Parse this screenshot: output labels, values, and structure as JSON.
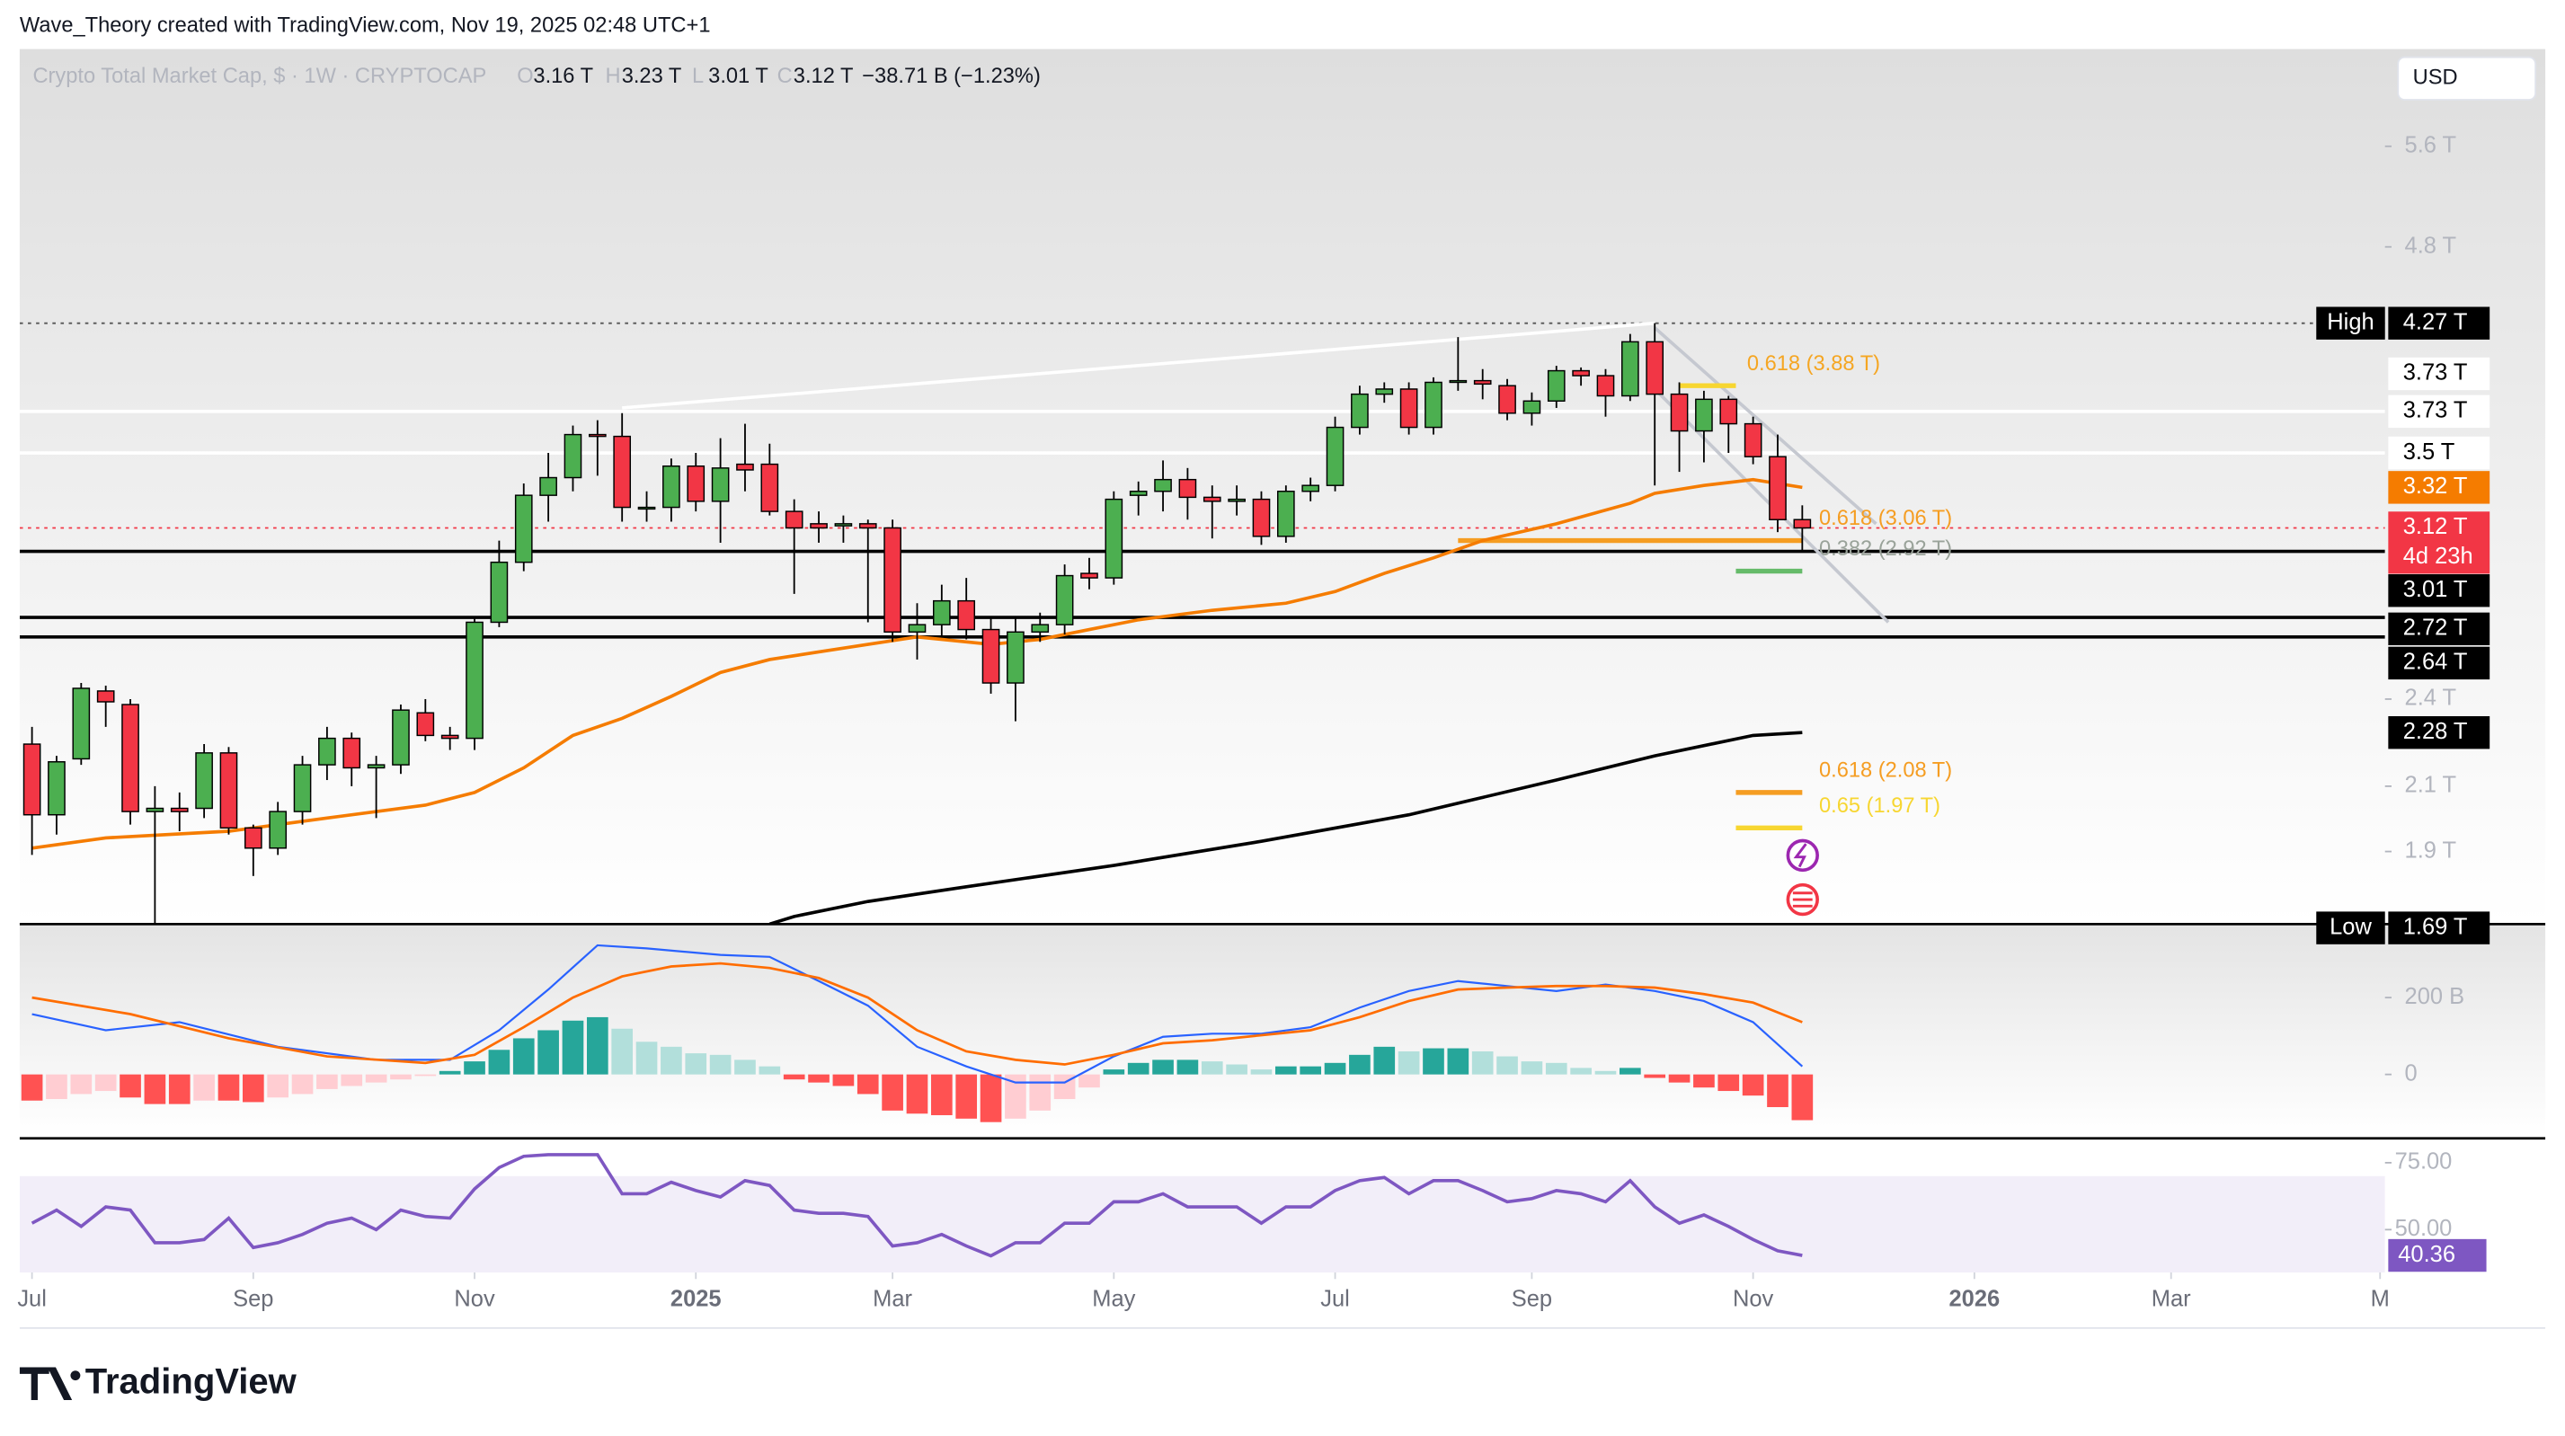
{
  "header": "Wave_Theory created with TradingView.com, Nov 19, 2025 02:48 UTC+1",
  "currency": "USD",
  "brand": "TradingView",
  "chart_data": {
    "type": "candlestick",
    "title": "Crypto Total Market Cap, $ · 1W · CRYPTOCAP",
    "legend_ohlc": [
      {
        "key": "O",
        "label": "3.16 T"
      },
      {
        "key": "H",
        "label": "3.23 T"
      },
      {
        "key": "L",
        "label": "3.01 T"
      },
      {
        "key": "C",
        "label": "3.12 T"
      }
    ],
    "change": "−38.71 B (−1.23%)",
    "xlim": [
      -0.5,
      95.7
    ],
    "xticks": [
      {
        "value": 0,
        "label": "Jul"
      },
      {
        "value": 9,
        "label": "Sep"
      },
      {
        "value": 18,
        "label": "Nov"
      },
      {
        "value": 27,
        "label": "2025"
      },
      {
        "value": 35,
        "label": "Mar"
      },
      {
        "value": 44,
        "label": "May"
      },
      {
        "value": 53,
        "label": "Jul"
      },
      {
        "value": 61,
        "label": "Sep"
      },
      {
        "value": 70,
        "label": "Nov"
      },
      {
        "value": 79,
        "label": "2026"
      },
      {
        "value": 87,
        "label": "Mar"
      },
      {
        "value": 95.5,
        "label": "M"
      }
    ],
    "ylim": [
      1.7,
      6.5
    ],
    "log_scale": true,
    "yticks": [
      {
        "value": 5.6,
        "label": "5.6 T"
      },
      {
        "value": 4.8,
        "label": "4.8 T"
      },
      {
        "value": 2.4,
        "label": "2.4 T"
      },
      {
        "value": 2.1,
        "label": "2.1 T"
      },
      {
        "value": 1.9,
        "label": "1.9 T"
      }
    ],
    "open": [
      2.24,
      2.01,
      2.19,
      2.43,
      2.38,
      2.02,
      2.03,
      2.03,
      2.21,
      1.97,
      1.91,
      2.02,
      2.17,
      2.26,
      2.16,
      2.17,
      2.35,
      2.27,
      2.26,
      2.7,
      2.96,
      3.28,
      3.37,
      3.6,
      3.59,
      3.22,
      3.22,
      3.43,
      3.25,
      3.44,
      3.44,
      3.2,
      3.14,
      3.13,
      3.14,
      3.12,
      2.66,
      2.69,
      2.79,
      2.67,
      2.46,
      2.66,
      2.69,
      2.91,
      2.89,
      3.28,
      3.3,
      3.36,
      3.27,
      3.25,
      3.26,
      3.08,
      3.3,
      3.33,
      3.64,
      3.83,
      3.86,
      3.64,
      3.9,
      3.91,
      3.88,
      3.72,
      3.79,
      3.97,
      3.94,
      3.82,
      4.15,
      3.83,
      3.62,
      3.8,
      3.66,
      3.48,
      3.16
    ],
    "high": [
      2.3,
      2.2,
      2.46,
      2.45,
      2.4,
      2.1,
      2.08,
      2.24,
      2.23,
      1.98,
      2.05,
      2.2,
      2.3,
      2.28,
      2.2,
      2.38,
      2.4,
      2.3,
      2.72,
      3.06,
      3.34,
      3.5,
      3.65,
      3.68,
      3.72,
      3.3,
      3.47,
      3.5,
      3.58,
      3.66,
      3.55,
      3.26,
      3.2,
      3.18,
      3.16,
      3.16,
      2.78,
      2.86,
      2.89,
      2.72,
      2.72,
      2.74,
      2.95,
      2.98,
      3.3,
      3.35,
      3.46,
      3.42,
      3.33,
      3.33,
      3.3,
      3.33,
      3.37,
      3.7,
      3.88,
      3.9,
      3.9,
      3.93,
      4.18,
      3.98,
      3.92,
      3.84,
      4.0,
      3.99,
      3.98,
      4.2,
      4.27,
      3.9,
      3.85,
      3.82,
      3.7,
      3.6,
      3.23
    ],
    "low": [
      1.89,
      1.95,
      2.17,
      2.3,
      1.98,
      1.7,
      1.96,
      2.0,
      1.95,
      1.83,
      1.89,
      1.98,
      2.12,
      2.1,
      2.0,
      2.14,
      2.25,
      2.22,
      2.22,
      2.68,
      2.92,
      3.15,
      3.3,
      3.38,
      3.15,
      3.15,
      3.15,
      3.2,
      3.05,
      3.3,
      3.18,
      2.82,
      3.05,
      3.05,
      2.7,
      2.62,
      2.55,
      2.64,
      2.63,
      2.42,
      2.32,
      2.62,
      2.65,
      2.84,
      2.86,
      3.18,
      3.2,
      3.16,
      3.07,
      3.18,
      3.04,
      3.05,
      3.25,
      3.3,
      3.6,
      3.78,
      3.6,
      3.6,
      3.85,
      3.8,
      3.68,
      3.65,
      3.75,
      3.88,
      3.7,
      3.79,
      3.33,
      3.4,
      3.45,
      3.5,
      3.44,
      3.1,
      3.01
    ],
    "close": [
      2.01,
      2.18,
      2.44,
      2.39,
      2.02,
      2.03,
      2.02,
      2.21,
      1.97,
      1.91,
      2.02,
      2.17,
      2.26,
      2.16,
      2.17,
      2.36,
      2.27,
      2.26,
      2.7,
      2.96,
      3.28,
      3.37,
      3.6,
      3.59,
      3.22,
      3.22,
      3.43,
      3.25,
      3.42,
      3.41,
      3.2,
      3.12,
      3.12,
      3.14,
      3.12,
      2.66,
      2.69,
      2.79,
      2.67,
      2.46,
      2.66,
      2.69,
      2.9,
      2.89,
      3.26,
      3.3,
      3.36,
      3.27,
      3.25,
      3.26,
      3.08,
      3.3,
      3.33,
      3.64,
      3.83,
      3.86,
      3.64,
      3.9,
      3.91,
      3.89,
      3.72,
      3.79,
      3.97,
      3.94,
      3.82,
      4.15,
      3.83,
      3.62,
      3.8,
      3.66,
      3.48,
      3.16,
      3.12
    ],
    "up_color": "#4caf50",
    "down_color": "#f23645",
    "overlays": [
      {
        "color": "#f57c00",
        "x": [
          0,
          3,
          8,
          12,
          16,
          18,
          20,
          22,
          24,
          26,
          28,
          30,
          32,
          34,
          36,
          39,
          41,
          43,
          45,
          48,
          51,
          53,
          55,
          57,
          59,
          62,
          65,
          66,
          68,
          70,
          72
        ],
        "values": [
          1.91,
          1.94,
          1.96,
          2.0,
          2.04,
          2.08,
          2.16,
          2.27,
          2.33,
          2.41,
          2.5,
          2.55,
          2.58,
          2.61,
          2.64,
          2.61,
          2.63,
          2.67,
          2.71,
          2.75,
          2.78,
          2.83,
          2.91,
          2.98,
          3.06,
          3.14,
          3.24,
          3.29,
          3.33,
          3.36,
          3.32
        ]
      },
      {
        "color": "#000000",
        "x": [
          30,
          31,
          34,
          38,
          44,
          50,
          56,
          62,
          66,
          70,
          72
        ],
        "values": [
          1.7,
          1.72,
          1.76,
          1.8,
          1.86,
          1.93,
          2.01,
          2.12,
          2.2,
          2.27,
          2.28
        ]
      }
    ],
    "trend_lines": [
      {
        "color": "#ffffff",
        "x": [
          24,
          66
        ],
        "values": [
          3.75,
          4.27
        ]
      },
      {
        "color": "#c5c8d0",
        "x": [
          66,
          75
        ],
        "values": [
          4.24,
          3.14
        ]
      },
      {
        "color": "#c5c8d0",
        "x": [
          66,
          75.5
        ],
        "values": [
          3.86,
          2.7
        ]
      }
    ],
    "levels": [
      {
        "value": 4.27,
        "label": "4.27 T",
        "tag": "High",
        "bg": "#000000",
        "fg": "#ffffff",
        "line": "dotted",
        "line_color": "#555555"
      },
      {
        "value": 3.73,
        "label": "3.73 T",
        "bg": "#ffffff",
        "fg": "#000000"
      },
      {
        "value": 3.73,
        "label": "3.73 T",
        "bg": "#ffffff",
        "fg": "#000000",
        "line": "solid",
        "line_color": "#ffffff"
      },
      {
        "value": 3.5,
        "label": "3.5 T",
        "bg": "#ffffff",
        "fg": "#000000",
        "line": "solid",
        "line_color": "#ffffff"
      },
      {
        "value": 3.32,
        "label": "3.32 T",
        "bg": "#f57c00",
        "fg": "#ffffff"
      },
      {
        "value": 3.12,
        "label": "3.12 T",
        "countdown": "4d 23h",
        "bg": "#f23645",
        "fg": "#ffffff",
        "line": "dotted",
        "line_color": "#f23645"
      },
      {
        "value": 3.01,
        "label": "3.01 T",
        "bg": "#000000",
        "fg": "#ffffff",
        "line": "solid",
        "line_color": "#000000"
      },
      {
        "value": 2.72,
        "label": "2.72 T",
        "bg": "#000000",
        "fg": "#ffffff",
        "line": "solid",
        "line_color": "#000000"
      },
      {
        "value": 2.64,
        "label": "2.64 T",
        "bg": "#000000",
        "fg": "#ffffff",
        "line": "solid",
        "line_color": "#000000"
      },
      {
        "value": 2.28,
        "label": "2.28 T",
        "bg": "#000000",
        "fg": "#ffffff"
      },
      {
        "value": 1.69,
        "label": "1.69 T",
        "tag": "Low",
        "bg": "#000000",
        "fg": "#ffffff"
      }
    ],
    "fib_levels": [
      {
        "label": "0.618 (3.88 T)",
        "value": 3.88,
        "color": "#f5a623",
        "line_color": "#f7d631"
      },
      {
        "label": "0.618 (3.06 T)",
        "value": 3.06,
        "color": "#f59d22",
        "line_color": "#f59d22"
      },
      {
        "label": "0.382 (2.92 T)",
        "value": 2.92,
        "color": "#9aa39a",
        "line_color": "#66bb6a"
      },
      {
        "label": "0.618 (2.08 T)",
        "value": 2.08,
        "color": "#f59d22",
        "line_color": "#f59d22"
      },
      {
        "label": "0.65 (1.97 T)",
        "value": 1.97,
        "color": "#f7d631",
        "line_color": "#f7d631"
      }
    ],
    "macd": {
      "ylim": [
        -162,
        387
      ],
      "yticks": [
        {
          "value": 200,
          "label": "200 B"
        },
        0
      ],
      "histogram": [
        -68,
        -64,
        -51,
        -43,
        -60,
        -77,
        -77,
        -68,
        -68,
        -72,
        -60,
        -51,
        -38,
        -30,
        -21,
        -13,
        -4,
        9,
        34,
        64,
        94,
        115,
        140,
        149,
        119,
        85,
        72,
        55,
        51,
        38,
        21,
        -13,
        -21,
        -30,
        -51,
        -94,
        -102,
        -106,
        -115,
        -124,
        -115,
        -94,
        -64,
        -34,
        13,
        30,
        38,
        38,
        34,
        26,
        13,
        21,
        21,
        30,
        51,
        72,
        60,
        68,
        68,
        60,
        47,
        34,
        30,
        17,
        9,
        17,
        -9,
        -21,
        -34,
        -43,
        -55,
        -85,
        -119
      ],
      "colors": {
        "rising_above": "#26a69a",
        "falling_above": "#b2dfdb",
        "falling_below": "#ff5252",
        "rising_below": "#ffcdd2"
      },
      "macd_line": {
        "color": "#2962ff",
        "x": [
          0,
          3,
          6,
          10,
          14,
          17,
          19,
          21,
          23,
          25,
          28,
          30,
          32,
          34,
          36,
          38,
          40,
          42,
          44,
          46,
          48,
          50,
          52,
          54,
          56,
          58,
          60,
          62,
          64,
          66,
          68,
          70,
          72
        ],
        "values": [
          157,
          115,
          136,
          72,
          38,
          38,
          115,
          221,
          336,
          328,
          311,
          306,
          243,
          179,
          72,
          21,
          -21,
          -21,
          47,
          98,
          106,
          106,
          123,
          174,
          217,
          243,
          230,
          217,
          234,
          217,
          191,
          136,
          21
        ]
      },
      "signal_line": {
        "color": "#ff6d00",
        "x": [
          0,
          4,
          8,
          12,
          16,
          18,
          20,
          22,
          24,
          26,
          28,
          30,
          32,
          34,
          36,
          38,
          40,
          42,
          44,
          46,
          48,
          50,
          52,
          54,
          56,
          58,
          60,
          62,
          64,
          66,
          68,
          70,
          72
        ],
        "values": [
          200,
          157,
          94,
          47,
          30,
          51,
          123,
          200,
          255,
          281,
          289,
          277,
          251,
          200,
          115,
          60,
          38,
          26,
          51,
          81,
          89,
          102,
          115,
          149,
          191,
          221,
          226,
          230,
          230,
          226,
          209,
          187,
          136
        ]
      }
    },
    "rsi": {
      "ylim": [
        34,
        83.5
      ],
      "yticks": [
        {
          "value": 75,
          "label": "75.00"
        },
        {
          "value": 50,
          "label": "50.00"
        }
      ],
      "band": [
        30,
        70
      ],
      "color": "#7e57c2",
      "values": [
        52.4,
        57.3,
        51.2,
        58.5,
        57.3,
        45.1,
        45.1,
        46.3,
        54.3,
        43.3,
        45.1,
        48.2,
        52.4,
        54.3,
        50.0,
        57.3,
        54.9,
        54.3,
        65.2,
        73.2,
        77.4,
        78.0,
        78.0,
        78.0,
        63.4,
        63.4,
        67.7,
        64.6,
        62.2,
        68.3,
        66.5,
        57.3,
        56.1,
        56.1,
        54.9,
        43.9,
        45.1,
        48.2,
        43.9,
        40.2,
        45.1,
        45.1,
        52.4,
        52.4,
        60.4,
        60.4,
        63.4,
        58.5,
        58.5,
        58.5,
        52.4,
        58.5,
        58.5,
        64.6,
        68.3,
        69.5,
        63.4,
        68.3,
        68.3,
        64.6,
        60.4,
        61.6,
        64.6,
        63.4,
        60.4,
        68.3,
        58.5,
        52.4,
        55.5,
        51.2,
        46.3,
        42.1,
        40.36
      ]
    }
  }
}
